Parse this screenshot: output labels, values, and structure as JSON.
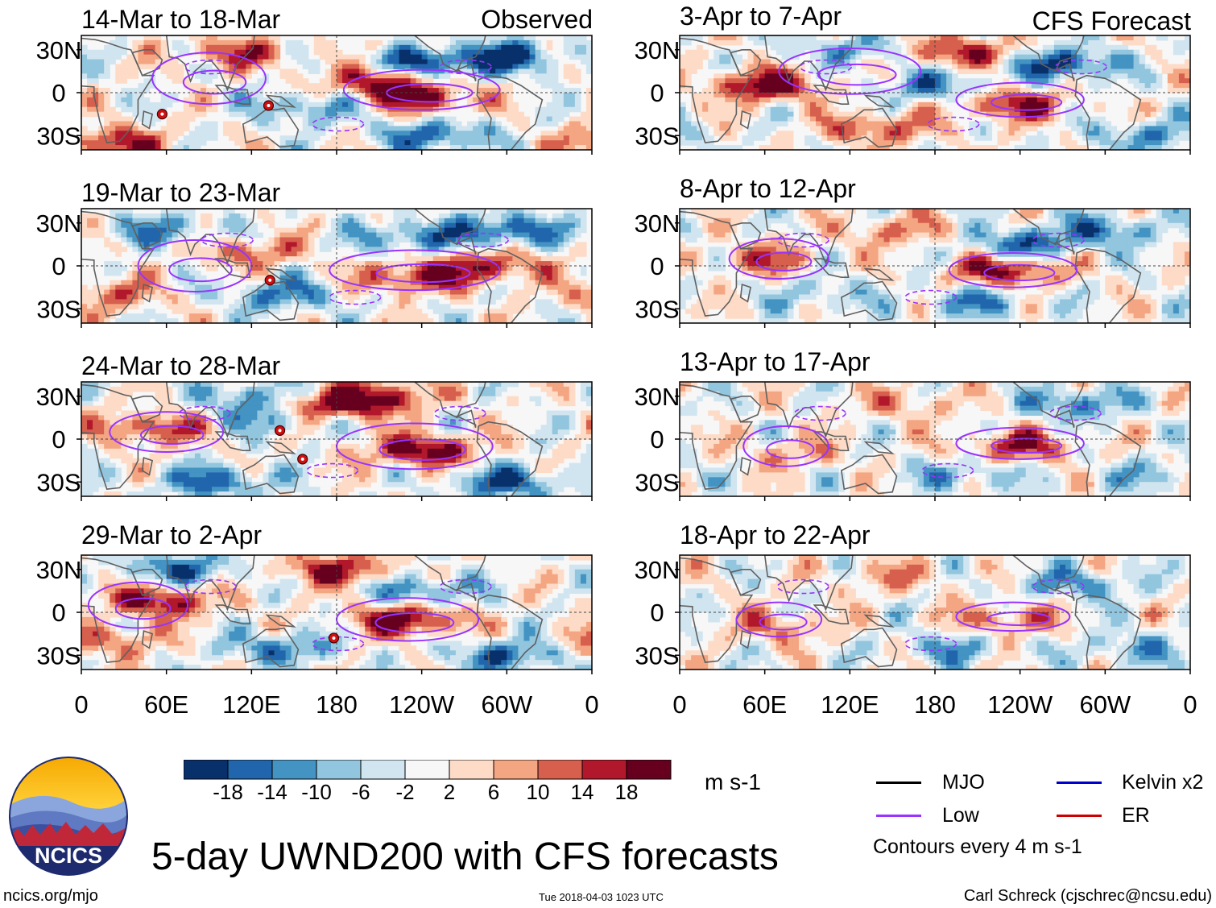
{
  "colors": {
    "levels": [
      "#08306b",
      "#2166ac",
      "#4393c3",
      "#92c5de",
      "#d1e5f0",
      "#f7f7f7",
      "#fddbc7",
      "#f4a582",
      "#d6604d",
      "#b2182b",
      "#67001f"
    ],
    "land": "#606060",
    "low_contour": "#9933ff",
    "mjo": "#000000",
    "kelvin": "#0000cc",
    "er": "#cc0000"
  },
  "chart_data": {
    "type": "heatmap",
    "variable": "200-hPa zonal wind anomaly (5-day mean)",
    "units": "m s-1",
    "colorbar_ticks": [
      "-18",
      "-14",
      "-10",
      "-6",
      "-2",
      "2",
      "6",
      "10",
      "14",
      "18"
    ],
    "lon_ticks": [
      "0",
      "60E",
      "120E",
      "180",
      "120W",
      "60W",
      "0"
    ],
    "lat_ticks": [
      "30N",
      "0",
      "30S"
    ],
    "lon_range": [
      0,
      360
    ],
    "lat_range": [
      -40,
      40
    ],
    "observed_label": "Observed",
    "forecast_label": "CFS Forecast",
    "panels": [
      {
        "title": "14-Mar to 18-Mar",
        "group": "observed",
        "seed": 11,
        "features": [
          {
            "lon": 210,
            "lat": 8,
            "value": 20
          },
          {
            "lon": 245,
            "lat": -5,
            "value": 16
          },
          {
            "lon": 300,
            "lat": 25,
            "value": -20
          },
          {
            "lon": 240,
            "lat": 20,
            "value": -18
          },
          {
            "lon": 160,
            "lat": -10,
            "value": -12
          },
          {
            "lon": 110,
            "lat": 28,
            "value": 14
          },
          {
            "lon": 250,
            "lat": -30,
            "value": -16
          },
          {
            "lon": 20,
            "lat": -35,
            "value": 18
          }
        ],
        "low_contours": [
          {
            "lon": 240,
            "lat": 2,
            "rx": 55,
            "ry": 14
          },
          {
            "lon": 90,
            "lat": 10,
            "rx": 40,
            "ry": 18
          }
        ],
        "cyclones": [
          {
            "lon": 57,
            "lat": -15
          },
          {
            "lon": 132,
            "lat": -9
          }
        ]
      },
      {
        "title": "19-Mar to 23-Mar",
        "group": "observed",
        "seed": 23,
        "features": [
          {
            "lon": 235,
            "lat": -8,
            "value": 18
          },
          {
            "lon": 290,
            "lat": 0,
            "value": 16
          },
          {
            "lon": 300,
            "lat": 25,
            "value": -18
          },
          {
            "lon": 140,
            "lat": -20,
            "value": -14
          },
          {
            "lon": 230,
            "lat": 20,
            "value": -14
          },
          {
            "lon": 60,
            "lat": 25,
            "value": -12
          },
          {
            "lon": 20,
            "lat": -20,
            "value": 12
          },
          {
            "lon": 120,
            "lat": 10,
            "value": 12
          }
        ],
        "low_contours": [
          {
            "lon": 235,
            "lat": -3,
            "rx": 60,
            "ry": 14
          },
          {
            "lon": 80,
            "lat": 0,
            "rx": 40,
            "ry": 18
          }
        ],
        "cyclones": [
          {
            "lon": 133,
            "lat": -10
          }
        ]
      },
      {
        "title": "24-Mar to 28-Mar",
        "group": "observed",
        "seed": 37,
        "features": [
          {
            "lon": 240,
            "lat": -8,
            "value": 22
          },
          {
            "lon": 50,
            "lat": 8,
            "value": 16
          },
          {
            "lon": 170,
            "lat": 22,
            "value": 20
          },
          {
            "lon": 210,
            "lat": 30,
            "value": 18
          },
          {
            "lon": 140,
            "lat": 15,
            "value": -14
          },
          {
            "lon": 300,
            "lat": -30,
            "value": -18
          },
          {
            "lon": 95,
            "lat": -30,
            "value": -16
          },
          {
            "lon": 120,
            "lat": 30,
            "value": -12
          }
        ],
        "low_contours": [
          {
            "lon": 235,
            "lat": -5,
            "rx": 55,
            "ry": 16
          },
          {
            "lon": 60,
            "lat": 5,
            "rx": 40,
            "ry": 14
          }
        ],
        "cyclones": [
          {
            "lon": 140,
            "lat": 6
          },
          {
            "lon": 156,
            "lat": -14
          }
        ]
      },
      {
        "title": "29-Mar to 2-Apr",
        "group": "observed",
        "seed": 41,
        "features": [
          {
            "lon": 230,
            "lat": -5,
            "value": 22
          },
          {
            "lon": 55,
            "lat": 8,
            "value": 20
          },
          {
            "lon": 180,
            "lat": 30,
            "value": 18
          },
          {
            "lon": 70,
            "lat": 30,
            "value": -16
          },
          {
            "lon": 300,
            "lat": -30,
            "value": -16
          },
          {
            "lon": 140,
            "lat": -25,
            "value": -14
          },
          {
            "lon": 240,
            "lat": 15,
            "value": -14
          },
          {
            "lon": 20,
            "lat": -20,
            "value": 12
          }
        ],
        "low_contours": [
          {
            "lon": 230,
            "lat": -5,
            "rx": 50,
            "ry": 15
          },
          {
            "lon": 40,
            "lat": 5,
            "rx": 35,
            "ry": 16
          }
        ],
        "cyclones": [
          {
            "lon": 178,
            "lat": -18
          }
        ]
      },
      {
        "title": "3-Apr to 7-Apr",
        "group": "forecast",
        "seed": 53,
        "features": [
          {
            "lon": 60,
            "lat": 5,
            "value": 22
          },
          {
            "lon": 235,
            "lat": -8,
            "value": 18
          },
          {
            "lon": 200,
            "lat": 28,
            "value": 18
          },
          {
            "lon": 140,
            "lat": -25,
            "value": 14
          },
          {
            "lon": 270,
            "lat": 20,
            "value": -20
          },
          {
            "lon": 180,
            "lat": 5,
            "value": -14
          },
          {
            "lon": 330,
            "lat": -30,
            "value": -12
          },
          {
            "lon": 120,
            "lat": 30,
            "value": -10
          }
        ],
        "low_contours": [
          {
            "lon": 240,
            "lat": -5,
            "rx": 45,
            "ry": 12
          },
          {
            "lon": 120,
            "lat": 15,
            "rx": 50,
            "ry": 16
          }
        ],
        "cyclones": []
      },
      {
        "title": "8-Apr to 12-Apr",
        "group": "forecast",
        "seed": 67,
        "features": [
          {
            "lon": 230,
            "lat": -3,
            "value": 20
          },
          {
            "lon": 60,
            "lat": 5,
            "value": 12
          },
          {
            "lon": 300,
            "lat": 25,
            "value": -14
          },
          {
            "lon": 240,
            "lat": 15,
            "value": -16
          },
          {
            "lon": 210,
            "lat": -25,
            "value": -12
          },
          {
            "lon": 150,
            "lat": 25,
            "value": 10
          },
          {
            "lon": 100,
            "lat": -20,
            "value": -8
          }
        ],
        "low_contours": [
          {
            "lon": 235,
            "lat": -3,
            "rx": 45,
            "ry": 12
          },
          {
            "lon": 70,
            "lat": 5,
            "rx": 35,
            "ry": 14
          }
        ],
        "cyclones": []
      },
      {
        "title": "13-Apr to 17-Apr",
        "group": "forecast",
        "seed": 79,
        "features": [
          {
            "lon": 240,
            "lat": -5,
            "value": 16
          },
          {
            "lon": 80,
            "lat": -10,
            "value": 8
          },
          {
            "lon": 280,
            "lat": 25,
            "value": -14
          },
          {
            "lon": 200,
            "lat": -25,
            "value": -10
          },
          {
            "lon": 160,
            "lat": 25,
            "value": 8
          },
          {
            "lon": 330,
            "lat": -25,
            "value": -8
          }
        ],
        "low_contours": [
          {
            "lon": 240,
            "lat": -3,
            "rx": 45,
            "ry": 11
          },
          {
            "lon": 75,
            "lat": -5,
            "rx": 30,
            "ry": 14
          }
        ],
        "cyclones": []
      },
      {
        "title": "18-Apr to 22-Apr",
        "group": "forecast",
        "seed": 97,
        "features": [
          {
            "lon": 230,
            "lat": -5,
            "value": 12
          },
          {
            "lon": 70,
            "lat": -10,
            "value": 10
          },
          {
            "lon": 280,
            "lat": 20,
            "value": -12
          },
          {
            "lon": 190,
            "lat": -25,
            "value": -10
          },
          {
            "lon": 150,
            "lat": 25,
            "value": 8
          },
          {
            "lon": 320,
            "lat": -25,
            "value": -10
          }
        ],
        "low_contours": [
          {
            "lon": 235,
            "lat": -3,
            "rx": 40,
            "ry": 10
          },
          {
            "lon": 70,
            "lat": -5,
            "rx": 30,
            "ry": 12
          }
        ],
        "cyclones": []
      }
    ]
  },
  "footer": {
    "main_title": "5-day UWND200 with CFS forecasts",
    "units_label": "m s-1",
    "contour_note": "Contours every 4 m s-1",
    "site": "ncics.org/mjo",
    "timestamp": "Tue 2018-04-03 1023 UTC",
    "credit": "Carl Schreck (cjschrec@ncsu.edu)",
    "logo_text": "NCICS"
  },
  "legend": [
    {
      "label": "MJO",
      "color": "#000000"
    },
    {
      "label": "Kelvin x2",
      "color": "#0000cc"
    },
    {
      "label": "Low",
      "color": "#9933ff"
    },
    {
      "label": "ER",
      "color": "#cc0000"
    }
  ]
}
